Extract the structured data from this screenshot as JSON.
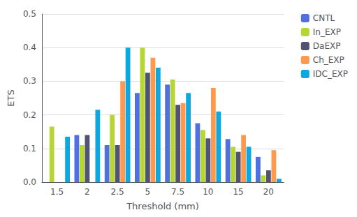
{
  "chart_data": {
    "type": "bar",
    "xlabel": "Threshold (mm)",
    "ylabel": "ETS",
    "categories": [
      "1.5",
      "2",
      "2.5",
      "5",
      "7.5",
      "10",
      "15",
      "20"
    ],
    "series": [
      {
        "name": "CNTL",
        "values": [
          0.0,
          0.14,
          0.11,
          0.265,
          0.29,
          0.175,
          0.128,
          0.075
        ]
      },
      {
        "name": "In_EXP",
        "values": [
          0.165,
          0.11,
          0.2,
          0.4,
          0.305,
          0.155,
          0.105,
          0.02
        ]
      },
      {
        "name": "DaEXP",
        "values": [
          0.0,
          0.14,
          0.11,
          0.325,
          0.23,
          0.13,
          0.09,
          0.035
        ]
      },
      {
        "name": "Ch_EXP",
        "values": [
          0.0,
          0.0,
          0.3,
          0.37,
          0.235,
          0.28,
          0.14,
          0.095
        ]
      },
      {
        "name": "IDC_EXP",
        "values": [
          0.135,
          0.215,
          0.4,
          0.34,
          0.265,
          0.21,
          0.105,
          0.01
        ]
      }
    ],
    "ylim": [
      0,
      0.5
    ],
    "yticks": [
      {
        "value": 0,
        "label": "0.0"
      },
      0.1,
      0.2,
      0.3,
      0.4,
      0.5
    ],
    "grid": true,
    "legend": "right"
  }
}
